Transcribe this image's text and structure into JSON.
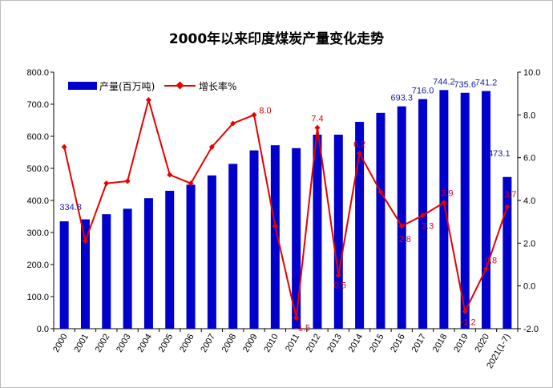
{
  "chart_data": {
    "type": "bar+line",
    "title": "2000年以来印度煤炭产量变化走势",
    "categories": [
      "2000",
      "2001",
      "2002",
      "2003",
      "2004",
      "2005",
      "2006",
      "2007",
      "2008",
      "2009",
      "2010",
      "2011",
      "2012",
      "2013",
      "2014",
      "2015",
      "2016",
      "2017",
      "2018",
      "2019",
      "2020",
      "2021(1-7)"
    ],
    "series": [
      {
        "name": "产量(百万吨)",
        "type": "bar",
        "axis": "left",
        "color": "#0000cc",
        "values": [
          334.8,
          341,
          357,
          374,
          407,
          430,
          449,
          478,
          514,
          556,
          572,
          563,
          605,
          605,
          645,
          673,
          693.3,
          716.0,
          744.2,
          735.6,
          741.2,
          473.1
        ],
        "labels": [
          "334.8",
          "",
          "",
          "",
          "",
          "",
          "",
          "",
          "",
          "",
          "",
          "",
          "",
          "",
          "",
          "",
          "693.3",
          "716.0",
          "744.2",
          "735.6",
          "741.2",
          "473.1"
        ]
      },
      {
        "name": "增长率%",
        "type": "line",
        "axis": "right",
        "color": "#e60000",
        "values": [
          6.5,
          2.1,
          4.8,
          4.9,
          8.7,
          5.2,
          4.8,
          6.5,
          7.6,
          8.0,
          2.8,
          -1.5,
          7.4,
          0.5,
          6.2,
          4.4,
          2.8,
          3.3,
          3.9,
          -1.2,
          0.8,
          3.7
        ],
        "labels": [
          "",
          "",
          "",
          "",
          "",
          "",
          "",
          "",
          "",
          "8.0",
          "",
          "-1.5",
          "7.4",
          "0.5",
          "6.2",
          "",
          "2.8",
          "3.3",
          "3.9",
          "-1.2",
          "0.8",
          "3.7"
        ]
      }
    ],
    "y_left": {
      "min": 0,
      "max": 800,
      "step": 100,
      "ticks": [
        "0.0",
        "100.0",
        "200.0",
        "300.0",
        "400.0",
        "500.0",
        "600.0",
        "700.0",
        "800.0"
      ]
    },
    "y_right": {
      "min": -2,
      "max": 10,
      "step": 2,
      "ticks": [
        "-2.0",
        "0.0",
        "2.0",
        "4.0",
        "6.0",
        "8.0",
        "10.0"
      ]
    },
    "grid": false,
    "legend": "top-left"
  }
}
